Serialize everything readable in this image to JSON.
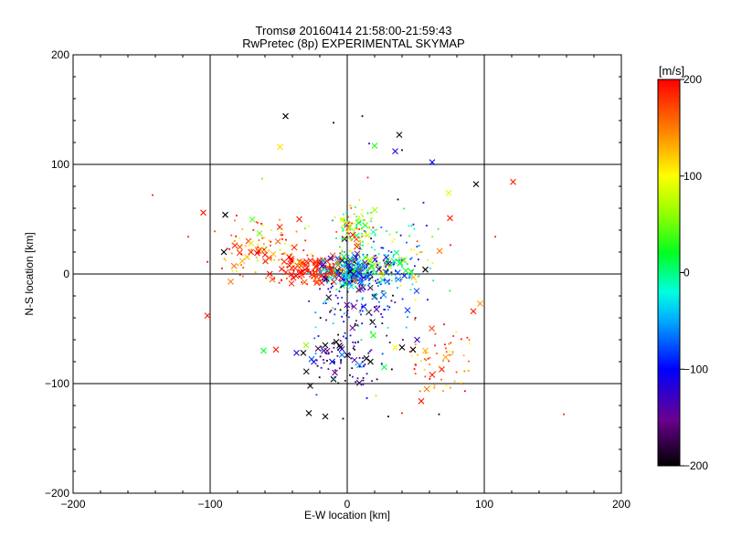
{
  "chart_data": {
    "type": "scatter",
    "title": "Tromsø 20160414 21:58:00-21:59:43",
    "subtitle": "RwPretec (8p) EXPERIMENTAL SKYMAP",
    "xlabel": "E-W location [km]",
    "ylabel": "N-S location [km]",
    "xlim": [
      -200,
      200
    ],
    "ylim": [
      -200,
      200
    ],
    "xticks": [
      "−200",
      "−100",
      "0",
      "100",
      "200"
    ],
    "yticks": [
      "−200",
      "−100",
      "0",
      "100",
      "200"
    ],
    "grid": "major lines at ±100 and 0",
    "colorbar": {
      "label": "[m/s]",
      "range": [
        -200,
        200
      ],
      "ticks": [
        "200",
        "100",
        "0",
        "−100",
        "−200"
      ],
      "colormap": "rainbow (black-purple-blue-cyan-green-yellow-orange-red)"
    },
    "series": [
      {
        "marker": "x",
        "points": [
          {
            "x": -45,
            "y": 144,
            "v": -210
          },
          {
            "x": 38,
            "y": 127,
            "v": -190
          },
          {
            "x": 20,
            "y": 117,
            "v": 30
          },
          {
            "x": -49,
            "y": 116,
            "v": 110
          },
          {
            "x": 35,
            "y": 112,
            "v": -120
          },
          {
            "x": 62,
            "y": 102,
            "v": -100
          },
          {
            "x": 121,
            "y": 84,
            "v": 185
          },
          {
            "x": 94,
            "y": 82,
            "v": -200
          },
          {
            "x": 74,
            "y": 74,
            "v": 90
          },
          {
            "x": -105,
            "y": 56,
            "v": 190
          },
          {
            "x": -89,
            "y": 54,
            "v": -210
          },
          {
            "x": 75,
            "y": 51,
            "v": 185
          },
          {
            "x": -35,
            "y": 50,
            "v": 190
          },
          {
            "x": -64,
            "y": 37,
            "v": 50
          },
          {
            "x": -90,
            "y": 20,
            "v": -210
          },
          {
            "x": -72,
            "y": 30,
            "v": 180
          },
          {
            "x": -82,
            "y": 26,
            "v": 180
          },
          {
            "x": 57,
            "y": 4,
            "v": -200
          },
          {
            "x": 28,
            "y": 2,
            "v": -200
          },
          {
            "x": -85,
            "y": -7,
            "v": 150
          },
          {
            "x": 97,
            "y": -27,
            "v": 140
          },
          {
            "x": 92,
            "y": -34,
            "v": 185
          },
          {
            "x": 44,
            "y": -33,
            "v": -80
          },
          {
            "x": -102,
            "y": -38,
            "v": 190
          },
          {
            "x": -61,
            "y": -70,
            "v": 20
          },
          {
            "x": -52,
            "y": -69,
            "v": 190
          },
          {
            "x": -37,
            "y": -72,
            "v": -120
          },
          {
            "x": -32,
            "y": -72,
            "v": -200
          },
          {
            "x": -30,
            "y": -65,
            "v": 60
          },
          {
            "x": -16,
            "y": -65,
            "v": -200
          },
          {
            "x": -8,
            "y": -62,
            "v": -200
          },
          {
            "x": -5,
            "y": -67,
            "v": -200
          },
          {
            "x": -17,
            "y": -70,
            "v": -150
          },
          {
            "x": 0,
            "y": -74,
            "v": -190
          },
          {
            "x": 19,
            "y": -56,
            "v": 30
          },
          {
            "x": 35,
            "y": -67,
            "v": 100
          },
          {
            "x": 40,
            "y": -67,
            "v": -200
          },
          {
            "x": 51,
            "y": -60,
            "v": -130
          },
          {
            "x": 48,
            "y": -69,
            "v": -200
          },
          {
            "x": 57,
            "y": -70,
            "v": 130
          },
          {
            "x": 14,
            "y": -77,
            "v": -200
          },
          {
            "x": 17,
            "y": -80,
            "v": -200
          },
          {
            "x": 9,
            "y": -83,
            "v": -60
          },
          {
            "x": -11,
            "y": -80,
            "v": -100
          },
          {
            "x": -9,
            "y": -90,
            "v": -160
          },
          {
            "x": 27,
            "y": -85,
            "v": 10
          },
          {
            "x": -10,
            "y": -96,
            "v": -200
          },
          {
            "x": 69,
            "y": -87,
            "v": 190
          },
          {
            "x": 62,
            "y": -92,
            "v": 190
          },
          {
            "x": -27,
            "y": -102,
            "v": -200
          },
          {
            "x": -28,
            "y": -127,
            "v": -200
          },
          {
            "x": -16,
            "y": -130,
            "v": -200
          },
          {
            "x": 58,
            "y": -105,
            "v": 150
          },
          {
            "x": 54,
            "y": -116,
            "v": 190
          },
          {
            "x": 0,
            "y": 45,
            "v": -150
          },
          {
            "x": -2,
            "y": 32,
            "v": -210
          },
          {
            "x": 7,
            "y": 25,
            "v": 190
          }
        ]
      },
      {
        "marker": "dot",
        "points": [
          {
            "x": -142,
            "y": 72,
            "v": 190
          },
          {
            "x": -116,
            "y": 34,
            "v": 190
          },
          {
            "x": -62,
            "y": 87,
            "v": 50
          },
          {
            "x": -10,
            "y": 138,
            "v": -210
          },
          {
            "x": 11,
            "y": 144,
            "v": -210
          },
          {
            "x": 16,
            "y": 119,
            "v": -120
          },
          {
            "x": 40,
            "y": 113,
            "v": -210
          },
          {
            "x": 15,
            "y": 88,
            "v": 190
          },
          {
            "x": 37,
            "y": 68,
            "v": -210
          },
          {
            "x": 108,
            "y": 34,
            "v": 190
          },
          {
            "x": 158,
            "y": -128,
            "v": 190
          },
          {
            "x": 40,
            "y": -127,
            "v": 190
          },
          {
            "x": 30,
            "y": -130,
            "v": -210
          },
          {
            "x": 67,
            "y": -128,
            "v": -210
          },
          {
            "x": -3,
            "y": -132,
            "v": -210
          },
          {
            "x": 84,
            "y": -100,
            "v": 190
          },
          {
            "x": 21,
            "y": -111,
            "v": 60
          }
        ]
      }
    ]
  }
}
